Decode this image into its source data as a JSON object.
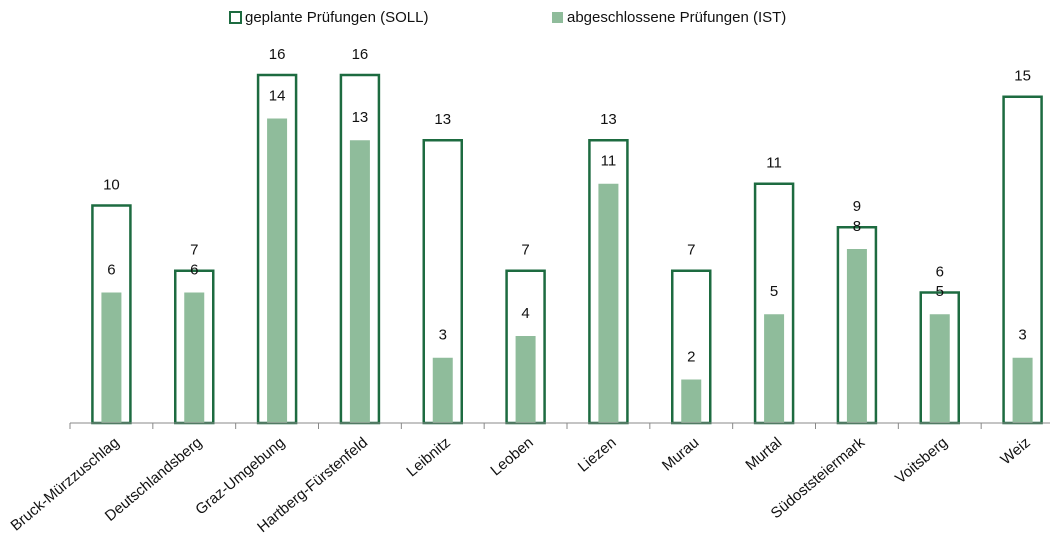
{
  "chart_data": {
    "type": "bar",
    "categories": [
      "Bruck-Mürzzuschlag",
      "Deutschlandsberg",
      "Graz-Umgebung",
      "Hartberg-Fürstenfeld",
      "Leibnitz",
      "Leoben",
      "Liezen",
      "Murau",
      "Murtal",
      "Südoststeiermark",
      "Voitsberg",
      "Weiz"
    ],
    "series": [
      {
        "name": "geplante Prüfungen (SOLL)",
        "color": "#1d6b40",
        "values": [
          10,
          7,
          16,
          16,
          13,
          7,
          13,
          7,
          11,
          9,
          6,
          15
        ]
      },
      {
        "name": "abgeschlossene Prüfungen (IST)",
        "color": "#8fbc9b",
        "values": [
          6,
          6,
          14,
          13,
          3,
          4,
          11,
          2,
          5,
          8,
          5,
          3
        ]
      }
    ],
    "ylim": [
      0,
      16
    ],
    "legend": "top"
  }
}
